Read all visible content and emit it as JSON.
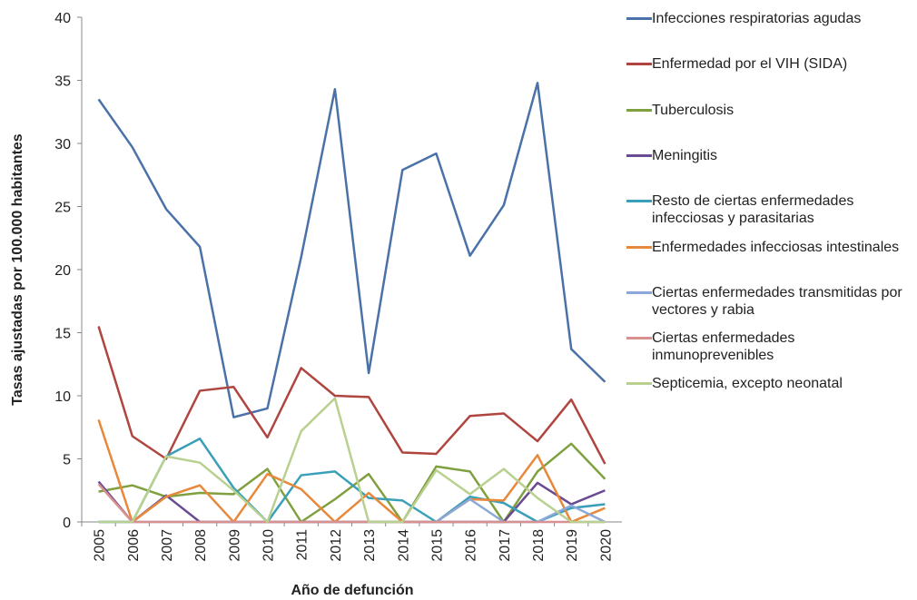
{
  "chart_data": {
    "type": "line",
    "y_label": "Tasas ajustadas por 100.000 habitantes",
    "x_label": "Año de defunción",
    "categories": [
      "2005",
      "2006",
      "2007",
      "2008",
      "2009",
      "2010",
      "2011",
      "2012",
      "2013",
      "2014",
      "2015",
      "2016",
      "2017",
      "2018",
      "2019",
      "2020"
    ],
    "ylim": [
      0,
      40
    ],
    "yticks": [
      0,
      5,
      10,
      15,
      20,
      25,
      30,
      35,
      40
    ],
    "series": [
      {
        "name": "Infecciones respiratorias agudas",
        "color": "#4a72a8",
        "values": [
          33.5,
          29.7,
          24.8,
          21.8,
          8.3,
          9.0,
          21.0,
          34.3,
          11.8,
          27.9,
          29.2,
          21.1,
          25.1,
          34.8,
          13.7,
          11.1
        ]
      },
      {
        "name": "Enfermedad por el VIH (SIDA)",
        "color": "#b04540",
        "values": [
          15.5,
          6.8,
          5.0,
          10.4,
          10.7,
          6.7,
          12.2,
          10.0,
          9.9,
          5.5,
          5.4,
          8.4,
          8.6,
          6.4,
          9.7,
          4.6
        ]
      },
      {
        "name": "Tuberculosis",
        "color": "#80a040",
        "values": [
          2.4,
          2.9,
          2.0,
          2.3,
          2.2,
          4.2,
          0,
          1.8,
          3.8,
          0,
          4.4,
          4.0,
          0,
          4.0,
          6.2,
          3.4
        ]
      },
      {
        "name": "Meningitis",
        "color": "#6a4a90",
        "values": [
          3.2,
          0,
          2.1,
          0,
          0,
          0,
          0,
          0,
          0,
          0,
          0,
          0,
          0,
          3.1,
          1.4,
          2.5
        ]
      },
      {
        "name": "Resto de ciertas enfermedades infecciosas y parasitarias",
        "color": "#3aa0b8",
        "values": [
          0,
          0,
          5.2,
          6.6,
          2.7,
          0,
          3.7,
          4.0,
          1.9,
          1.7,
          0,
          2.0,
          1.5,
          0,
          1.1,
          1.4
        ]
      },
      {
        "name": "Enfermedades infecciosas intestinales",
        "color": "#e8883a",
        "values": [
          8.1,
          0,
          2.0,
          2.9,
          0,
          3.8,
          2.6,
          0,
          2.3,
          0,
          0,
          1.8,
          1.7,
          5.3,
          0,
          1.1
        ]
      },
      {
        "name": "Ciertas enfermedades transmitidas por vectores y rabia",
        "color": "#8aa8d8",
        "values": [
          0,
          0,
          0,
          0,
          0,
          0,
          0,
          0,
          0,
          0,
          0,
          1.8,
          0,
          0,
          1.3,
          0
        ]
      },
      {
        "name": "Ciertas enfermedades inmunoprevenibles",
        "color": "#d89090",
        "values": [
          3.0,
          0,
          0,
          0,
          0,
          0,
          0,
          0,
          0,
          0,
          0,
          0,
          0,
          0,
          0,
          0
        ]
      },
      {
        "name": "Septicemia, excepto neonatal",
        "color": "#b8d090",
        "values": [
          0,
          0,
          5.2,
          4.7,
          2.5,
          0,
          7.2,
          9.8,
          0,
          0,
          4.1,
          2.2,
          4.2,
          1.9,
          0,
          0
        ]
      }
    ]
  }
}
